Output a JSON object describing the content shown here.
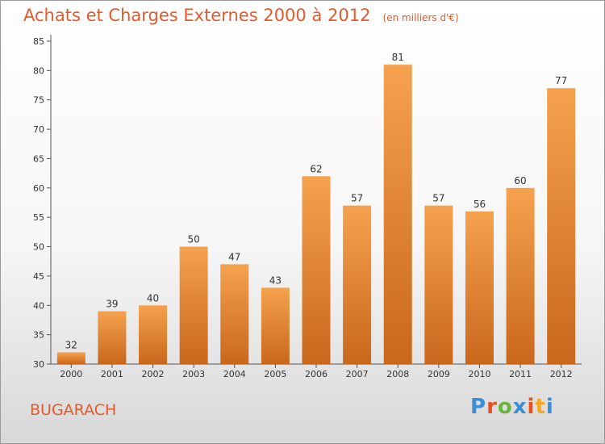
{
  "chart_data": {
    "type": "bar",
    "title": "Achats et Charges Externes 2000 à 2012",
    "subtitle": "(en milliers d'€)",
    "categories": [
      "2000",
      "2001",
      "2002",
      "2003",
      "2004",
      "2005",
      "2006",
      "2007",
      "2008",
      "2009",
      "2010",
      "2011",
      "2012"
    ],
    "values": [
      32,
      39,
      40,
      50,
      47,
      43,
      62,
      57,
      81,
      57,
      56,
      60,
      77
    ],
    "ylim": [
      30,
      85
    ],
    "yticks": [
      30,
      35,
      40,
      45,
      50,
      55,
      60,
      65,
      70,
      75,
      80,
      85
    ],
    "grid": false,
    "bar_color_top": "#f5a24e",
    "bar_color_bottom": "#c9671c"
  },
  "footer": {
    "commune": "BUGARACH",
    "logo": {
      "text": "Proxiti",
      "letter_colors": [
        "#3a8fd6",
        "#e8501e",
        "#6cb33f",
        "#3a8fd6",
        "#e8501e",
        "#f5a623",
        "#3a8fd6"
      ]
    }
  },
  "colors": {
    "accent": "#e45a2a"
  }
}
